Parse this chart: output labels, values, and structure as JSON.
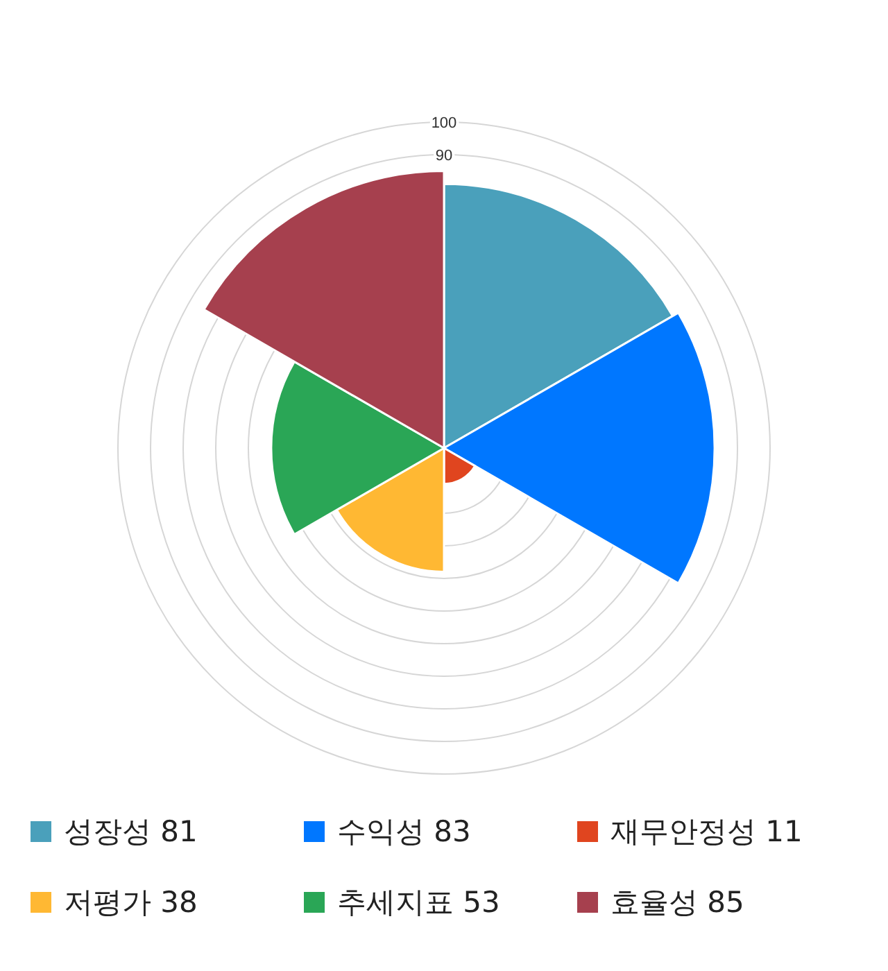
{
  "chart_data": {
    "type": "other",
    "categories": [
      "성장성",
      "수익성",
      "재무안정성",
      "저평가",
      "추세지표",
      "효율성"
    ],
    "values": [
      81,
      83,
      11,
      38,
      53,
      85
    ],
    "colors": [
      "#4aa0bb",
      "#0077ff",
      "#e0451f",
      "#ffb833",
      "#2aa656",
      "#a6404e"
    ],
    "annotations": [
      "100",
      "90"
    ],
    "data_labels": true
  }
}
